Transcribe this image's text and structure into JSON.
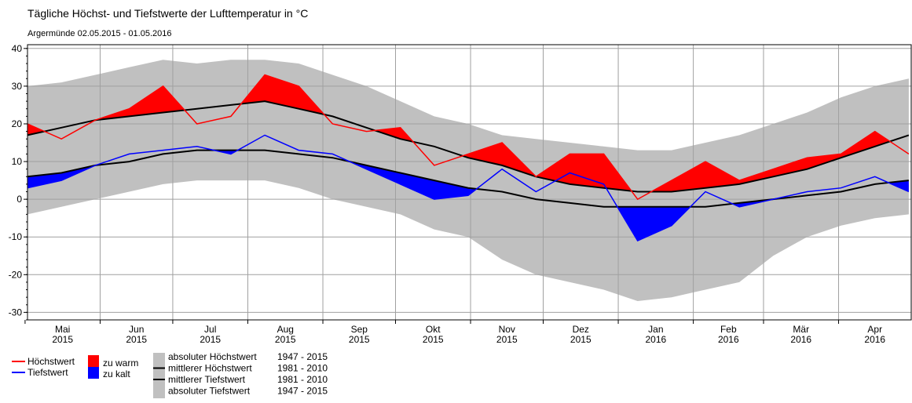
{
  "chart_data": {
    "type": "climate-band",
    "title": "Tägliche Höchst- und Tiefstwerte der Lufttemperatur in °C",
    "subtitle": "Argermünde  02.05.2015 - 01.05.2016",
    "x": [
      "2015-05-02",
      "2015-05-16",
      "2015-05-30",
      "2015-06-13",
      "2015-06-27",
      "2015-07-11",
      "2015-07-25",
      "2015-08-08",
      "2015-08-22",
      "2015-09-05",
      "2015-09-19",
      "2015-10-03",
      "2015-10-17",
      "2015-10-31",
      "2015-11-14",
      "2015-11-28",
      "2015-12-12",
      "2015-12-26",
      "2016-01-09",
      "2016-01-23",
      "2016-02-06",
      "2016-02-20",
      "2016-03-05",
      "2016-03-19",
      "2016-04-02",
      "2016-04-16",
      "2016-04-30"
    ],
    "xlim": [
      "2015-05-02",
      "2016-05-01"
    ],
    "months": [
      "2015-05",
      "2015-06",
      "2015-07",
      "2015-08",
      "2015-09",
      "2015-10",
      "2015-11",
      "2015-12",
      "2016-01",
      "2016-02",
      "2016-03",
      "2016-04"
    ],
    "month_labels": [
      "Mai",
      "Jun",
      "Jul",
      "Aug",
      "Sep",
      "Okt",
      "Nov",
      "Dez",
      "Jan",
      "Feb",
      "Mär",
      "Apr"
    ],
    "year_labels": [
      "2015",
      "2015",
      "2015",
      "2015",
      "2015",
      "2015",
      "2015",
      "2015",
      "2016",
      "2016",
      "2016",
      "2016"
    ],
    "ylim": [
      -32,
      41
    ],
    "yticks": [
      -30,
      -20,
      -10,
      0,
      10,
      20,
      30,
      40
    ],
    "grid": true,
    "series": [
      {
        "name": "Höchstwert",
        "color": "#ff0000",
        "values": [
          20,
          16,
          21,
          24,
          30,
          20,
          22,
          33,
          30,
          20,
          18,
          19,
          9,
          12,
          15,
          6,
          12,
          12,
          0,
          5,
          10,
          5,
          8,
          11,
          12,
          18,
          12
        ]
      },
      {
        "name": "Tiefstwert",
        "color": "#0000ff",
        "values": [
          3,
          5,
          9,
          12,
          13,
          14,
          12,
          17,
          13,
          12,
          8,
          4,
          0,
          1,
          8,
          2,
          7,
          4,
          -11,
          -7,
          2,
          -2,
          0,
          2,
          3,
          6,
          2
        ]
      },
      {
        "name": "mittlerer Höchstwert",
        "period": "1981 - 2010",
        "color": "#000000",
        "values": [
          17,
          19,
          21,
          22,
          23,
          24,
          25,
          26,
          24,
          22,
          19,
          16,
          14,
          11,
          9,
          6,
          4,
          3,
          2,
          2,
          3,
          4,
          6,
          8,
          11,
          14,
          17
        ]
      },
      {
        "name": "mittlerer Tiefstwert",
        "period": "1981 - 2010",
        "color": "#000000",
        "values": [
          6,
          7,
          9,
          10,
          12,
          13,
          13,
          13,
          12,
          11,
          9,
          7,
          5,
          3,
          2,
          0,
          -1,
          -2,
          -2,
          -2,
          -2,
          -1,
          0,
          1,
          2,
          4,
          5
        ]
      },
      {
        "name": "absoluter Höchstwert",
        "period": "1947 - 2015",
        "color": "#c0c0c0",
        "values": [
          30,
          31,
          33,
          35,
          37,
          36,
          37,
          37,
          36,
          33,
          30,
          26,
          22,
          20,
          17,
          16,
          15,
          14,
          13,
          13,
          15,
          17,
          20,
          23,
          27,
          30,
          32
        ]
      },
      {
        "name": "absoluter Tiefstwert",
        "period": "1947 - 2015",
        "color": "#c0c0c0",
        "values": [
          -4,
          -2,
          0,
          2,
          4,
          5,
          5,
          5,
          3,
          0,
          -2,
          -4,
          -8,
          -10,
          -16,
          -20,
          -22,
          -24,
          -27,
          -26,
          -24,
          -22,
          -15,
          -10,
          -7,
          -5,
          -4
        ]
      }
    ],
    "fills": [
      {
        "name": "zu warm",
        "color": "#ff0000"
      },
      {
        "name": "zu kalt",
        "color": "#0000ff"
      }
    ]
  }
}
